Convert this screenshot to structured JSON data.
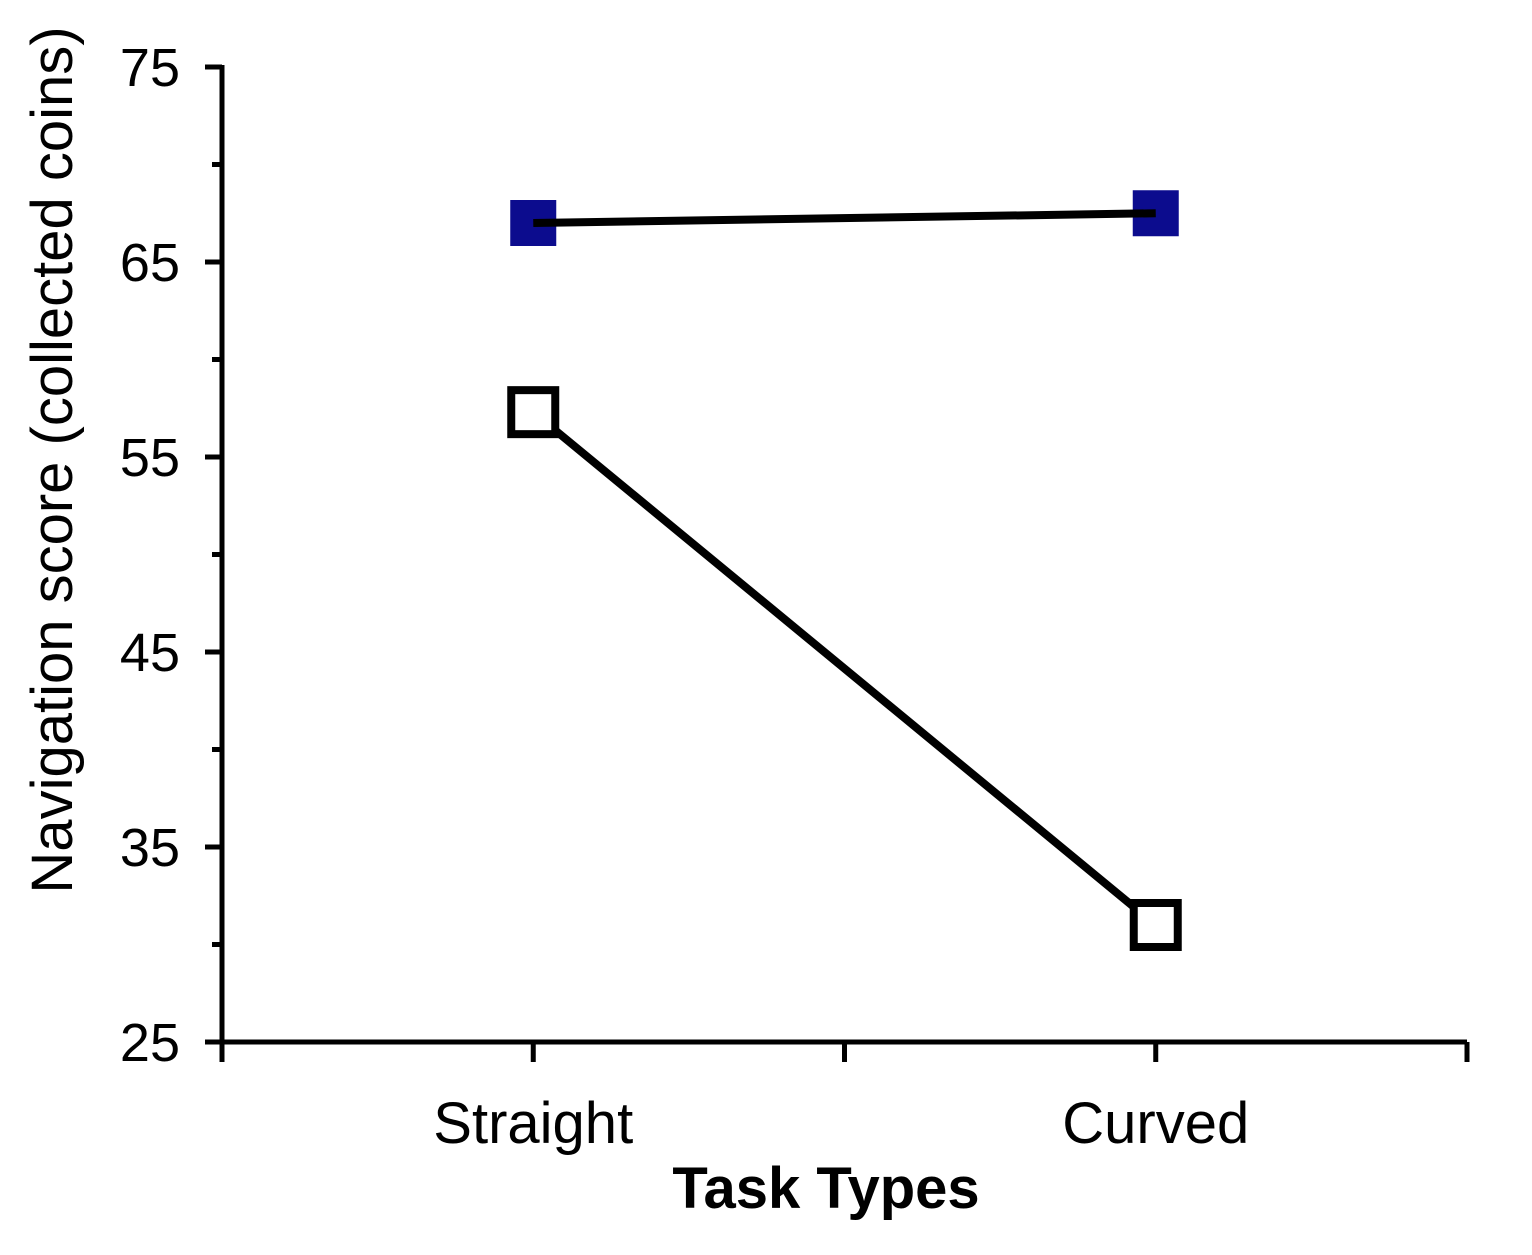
{
  "chart_data": {
    "type": "line",
    "title": "",
    "xlabel": "Task Types",
    "ylabel": "Navigation score (collected coins)",
    "categories": [
      "Straight",
      "Curved"
    ],
    "series": [
      {
        "name": "filled-navy-squares",
        "marker": "filled-square",
        "marker_color": "#0c0c8e",
        "line_color": "#000000",
        "values": [
          67,
          67.5
        ]
      },
      {
        "name": "open-white-squares",
        "marker": "open-square",
        "marker_color": "#ffffff",
        "line_color": "#000000",
        "values": [
          57.3,
          31
        ]
      }
    ],
    "ylim": [
      25,
      75
    ],
    "ytick_major": [
      25,
      35,
      45,
      55,
      65,
      75
    ],
    "ytick_minor": [
      30,
      40,
      50,
      60,
      70
    ],
    "grid": false,
    "legend": "none",
    "background": "#ffffff",
    "axis_color": "#000000"
  }
}
